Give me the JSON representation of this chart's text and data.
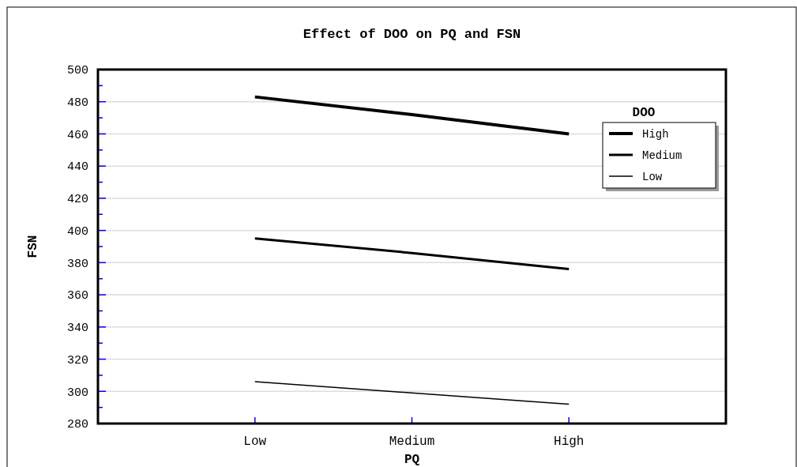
{
  "chart_data": {
    "type": "line",
    "title": "Effect of DOO on PQ and FSN",
    "xlabel": "PQ",
    "ylabel": "FSN",
    "legend_title": "DOO",
    "categories": [
      null,
      "Low",
      "Medium",
      "High",
      null
    ],
    "series": [
      {
        "name": "High",
        "color": "#000000",
        "values": [
          null,
          483,
          472,
          460,
          null
        ]
      },
      {
        "name": "Medium",
        "color": "#000000",
        "values": [
          null,
          395,
          386,
          376,
          null
        ]
      },
      {
        "name": "Low",
        "color": "#000000",
        "values": [
          null,
          306,
          299,
          292,
          null
        ]
      }
    ],
    "ylim": [
      280,
      500
    ],
    "yticks": [
      280,
      {
        "value": 290,
        "label": null
      },
      300,
      {
        "value": 310,
        "label": null
      },
      320,
      {
        "value": 330,
        "label": null
      },
      340,
      {
        "value": 350,
        "label": null
      },
      360,
      {
        "value": 370,
        "label": null
      },
      380,
      {
        "value": 390,
        "label": null
      },
      400,
      {
        "value": 410,
        "label": null
      },
      420,
      {
        "value": 430,
        "label": null
      },
      440,
      {
        "value": 450,
        "label": null
      },
      460,
      {
        "value": 470,
        "label": null
      },
      480,
      {
        "value": 490,
        "label": null
      },
      500
    ],
    "grid": "y",
    "legend": "top right",
    "marker": "none",
    "line_style": "solid"
  }
}
